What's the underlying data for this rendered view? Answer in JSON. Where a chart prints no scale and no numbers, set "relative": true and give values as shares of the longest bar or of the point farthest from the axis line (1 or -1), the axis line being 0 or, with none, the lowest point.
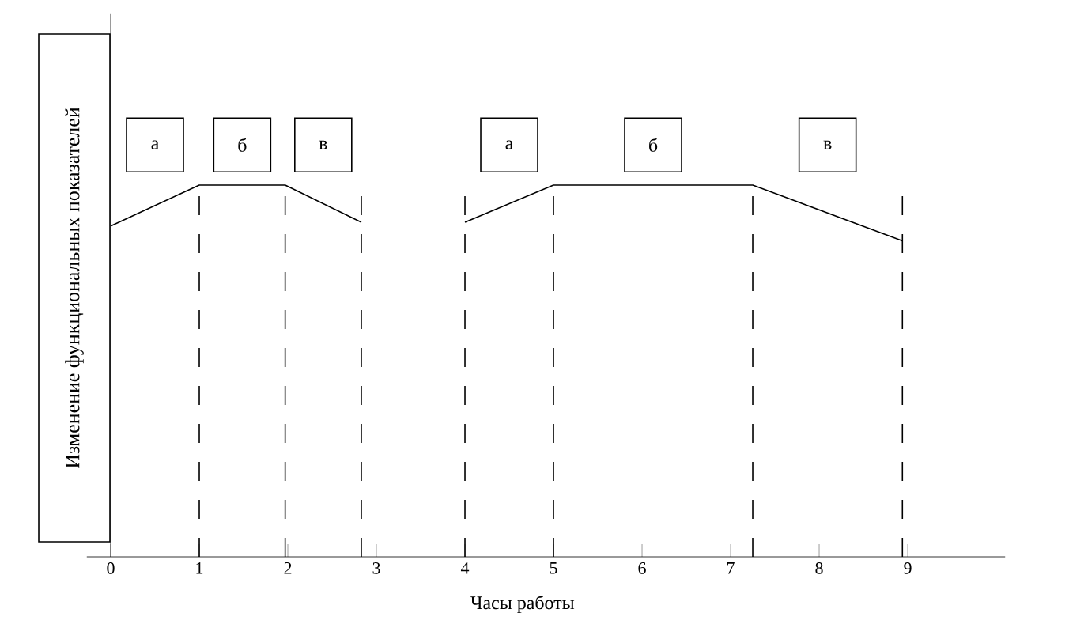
{
  "chart_data": {
    "type": "line",
    "relative": true,
    "xlabel": "Часы работы",
    "ylabel": "Изменение функциональных показателей",
    "x": [
      0,
      1,
      1.97,
      2.83,
      3.4,
      4,
      5,
      7.25,
      8.94
    ],
    "series": [
      {
        "color": "#000000",
        "values": [
          0.89,
          1,
          1,
          0.9,
          null,
          0.9,
          1,
          1,
          0.85
        ]
      }
    ],
    "xlim": [
      -0.27,
      10.1
    ],
    "xticks": [
      0,
      1,
      2,
      3,
      4,
      5,
      6,
      7,
      8,
      9
    ],
    "ref_lines": [
      {
        "axis": "x",
        "value": 1,
        "line_style": "dashed"
      },
      {
        "axis": "x",
        "value": 1.97,
        "line_style": "dashed"
      },
      {
        "axis": "x",
        "value": 2.83,
        "line_style": "dashed"
      },
      {
        "axis": "x",
        "value": 4,
        "line_style": "dashed"
      },
      {
        "axis": "x",
        "value": 5,
        "line_style": "dashed"
      },
      {
        "axis": "x",
        "value": 7.25,
        "line_style": "dashed"
      },
      {
        "axis": "x",
        "value": 8.94,
        "line_style": "dashed"
      }
    ],
    "annotations": [
      "а",
      "б",
      "в",
      "а",
      "б",
      "в"
    ],
    "marker": "none",
    "line_style": "solid"
  }
}
